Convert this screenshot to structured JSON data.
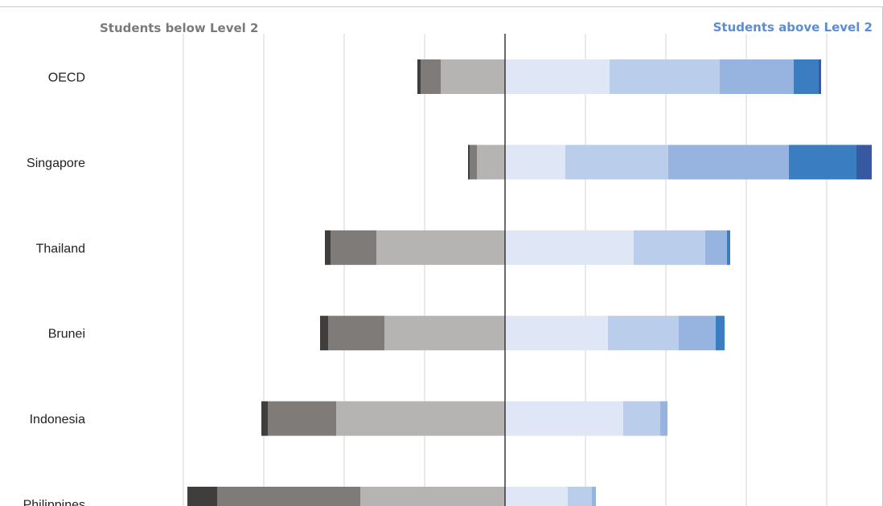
{
  "chart_data": {
    "type": "bar",
    "orientation": "horizontal",
    "stacking": "diverging",
    "title": "",
    "xlabel": "",
    "ylabel": "",
    "xlim": [
      -40,
      46
    ],
    "grid": true,
    "left_header": "Students below Level 2",
    "right_header": "Students above Level 2",
    "categories": [
      "OECD",
      "Singapore",
      "Thailand",
      "Brunei",
      "Indonesia",
      "Philippines"
    ],
    "below_series": [
      {
        "colour": "#b5b4b2",
        "values": [
          8.0,
          3.5,
          16.0,
          15.0,
          21.0,
          18.0
        ]
      },
      {
        "colour": "#7e7b79",
        "values": [
          2.5,
          0.9,
          5.7,
          7.0,
          8.5,
          17.8
        ]
      },
      {
        "colour": "#3f3e3d",
        "values": [
          0.4,
          0.2,
          0.7,
          1.0,
          0.8,
          3.7
        ]
      }
    ],
    "above_series": [
      {
        "colour": "#dfe6f6",
        "values": [
          13.0,
          7.5,
          16.0,
          12.8,
          14.7,
          7.8
        ]
      },
      {
        "colour": "#bacdeb",
        "values": [
          13.7,
          12.8,
          8.9,
          8.8,
          4.6,
          3.0
        ]
      },
      {
        "colour": "#97b3e0",
        "values": [
          9.2,
          15.0,
          2.7,
          4.6,
          0.9,
          0.5
        ]
      },
      {
        "colour": "#3a7dc0",
        "values": [
          3.1,
          8.4,
          0.4,
          1.1,
          0,
          0
        ]
      },
      {
        "colour": "#3759a1",
        "values": [
          0.3,
          1.9,
          0,
          0,
          0,
          0
        ]
      }
    ],
    "colours": {
      "left_header": "#7a7a7a",
      "right_header": "#5b8ed0",
      "axis": "#2b2b2b",
      "grid": "#dcdcdc",
      "frame": "#c8c8c8"
    }
  }
}
